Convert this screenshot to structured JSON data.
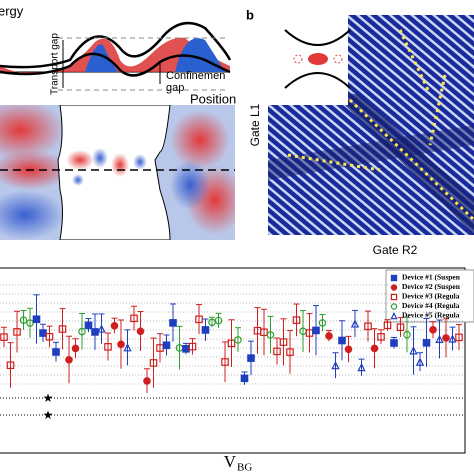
{
  "panel_a": {
    "energy_label": "ergy",
    "transport_gap": "Transport gap",
    "confinement_gap_1": "Confinemen",
    "confinement_gap_2": "gap",
    "position_label": "Position"
  },
  "panel_b": {
    "letter": "b",
    "y_label": "Gate L1",
    "x_label": "Gate R2"
  },
  "panel_c": {
    "legend": [
      "Device #1 (Suspen",
      "Device #2 (Suspen",
      "Device #3 (Regula",
      "Device #4 (Regula",
      "Device #5 (Regula"
    ],
    "x_label": "V",
    "x_label_sub": "BG"
  }
}
